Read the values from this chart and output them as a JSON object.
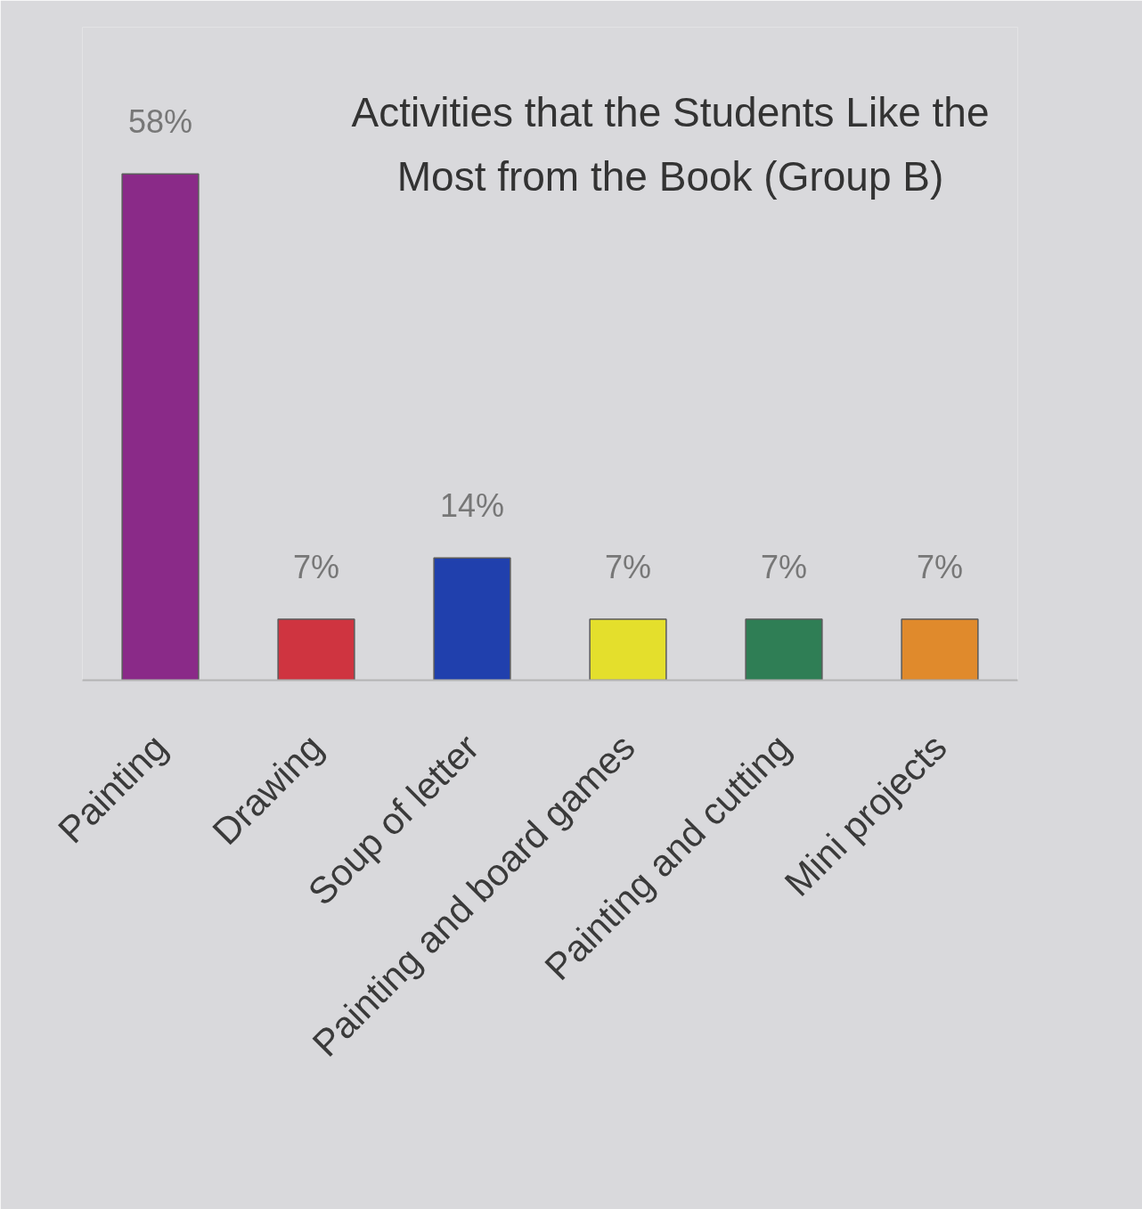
{
  "chart_data": {
    "type": "bar",
    "title": "Activities that the Students Like the Most from the Book (Group B)",
    "categories": [
      "Painting",
      "Drawing",
      "Soup of letter",
      "Painting and board games",
      "Painting and cutting",
      "Mini projects"
    ],
    "values": [
      58,
      7,
      14,
      7,
      7,
      7
    ],
    "value_labels": [
      "58%",
      "7%",
      "14%",
      "7%",
      "7%",
      "7%"
    ],
    "colors": [
      "#8a2a88",
      "#cf3440",
      "#2040ad",
      "#e4df2c",
      "#2f7e55",
      "#e08a2c"
    ]
  }
}
